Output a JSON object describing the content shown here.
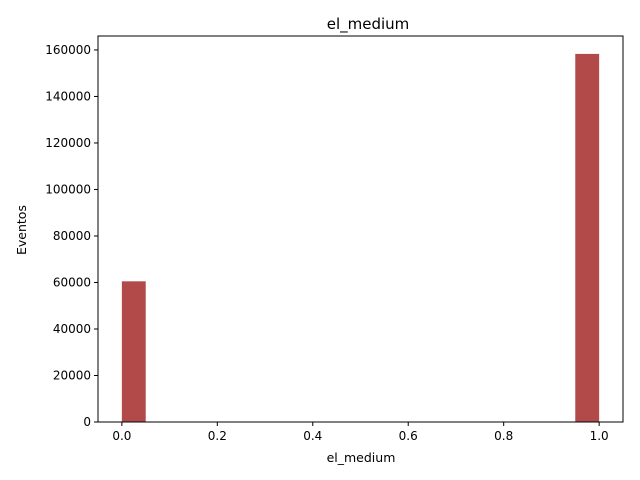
{
  "chart_data": {
    "type": "bar",
    "title": "el_medium",
    "xlabel": "el_medium",
    "ylabel": "Eventos",
    "xlim": [
      -0.05,
      1.05
    ],
    "ylim": [
      0,
      166000
    ],
    "x_ticks": [
      0.0,
      0.2,
      0.4,
      0.6,
      0.8,
      1.0
    ],
    "x_tick_labels": [
      "0.0",
      "0.2",
      "0.4",
      "0.6",
      "0.8",
      "1.0"
    ],
    "y_ticks": [
      0,
      20000,
      40000,
      60000,
      80000,
      100000,
      120000,
      140000,
      160000
    ],
    "y_tick_labels": [
      "0",
      "20000",
      "40000",
      "60000",
      "80000",
      "100000",
      "120000",
      "140000",
      "160000"
    ],
    "bin_width": 0.05,
    "bins": [
      {
        "x_start": 0.0,
        "x_end": 0.05,
        "value": 60500
      },
      {
        "x_start": 0.95,
        "x_end": 1.0,
        "value": 158300
      }
    ],
    "bar_color": "#a52a2a",
    "bar_opacity": 0.85,
    "grid": false,
    "legend": "none"
  }
}
